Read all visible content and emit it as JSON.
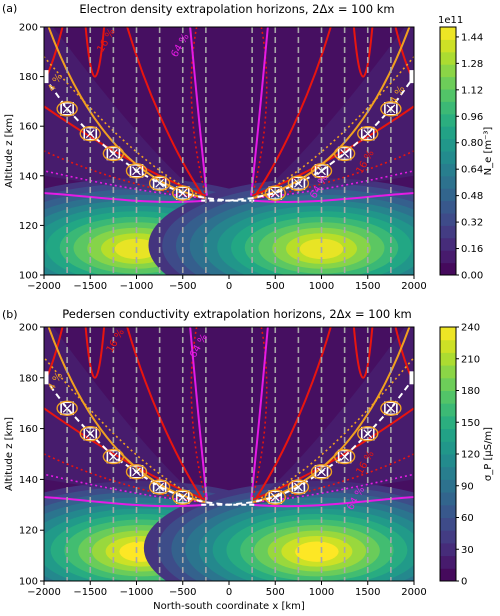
{
  "chart_data": [
    {
      "type": "heatmap",
      "panel_label": "(a)",
      "title": "Electron density extrapolation horizons, 2Δx = 100 km",
      "xlabel": "",
      "ylabel": "Altitude z [km]",
      "xlim": [
        -2000,
        2000
      ],
      "ylim": [
        100,
        200
      ],
      "x_ticks": [
        "−2000",
        "−1500",
        "−1000",
        "−500",
        "0",
        "500",
        "1000",
        "1500",
        "2000"
      ],
      "y_ticks": [
        "100",
        "120",
        "140",
        "160",
        "180",
        "200"
      ],
      "colorbar": {
        "label": "N_e [m⁻³]",
        "multiplier": "1e11",
        "range": [
          0,
          1.5
        ],
        "ticks": [
          "0.00",
          "0.16",
          "0.32",
          "0.48",
          "0.64",
          "0.80",
          "0.96",
          "1.12",
          "1.28",
          "1.44"
        ]
      },
      "blobs": [
        {
          "x": -1000,
          "z": 112,
          "peak": 1.45
        },
        {
          "x": 1000,
          "z": 112,
          "peak": 1.45
        }
      ],
      "dashed_verticals_x": [
        -1750,
        -1500,
        -1250,
        -1000,
        -750,
        -500,
        -250,
        250,
        500,
        750,
        1000,
        1250,
        1500,
        1750
      ],
      "horizon_points": [
        {
          "x": -1750,
          "z": 167
        },
        {
          "x": -1500,
          "z": 157
        },
        {
          "x": -1250,
          "z": 149
        },
        {
          "x": -1000,
          "z": 142
        },
        {
          "x": -750,
          "z": 137
        },
        {
          "x": -500,
          "z": 133
        },
        {
          "x": 500,
          "z": 133
        },
        {
          "x": 750,
          "z": 137
        },
        {
          "x": 1000,
          "z": 142
        },
        {
          "x": 1250,
          "z": 149
        },
        {
          "x": 1500,
          "z": 157
        },
        {
          "x": 1750,
          "z": 167
        }
      ],
      "edge_points": [
        {
          "x": -2000,
          "z": 180
        },
        {
          "x": 2000,
          "z": 180
        }
      ],
      "contour_labels": [
        "4 %",
        "16 %",
        "64 %",
        "4 %",
        "16 %",
        "64 %"
      ]
    },
    {
      "type": "heatmap",
      "panel_label": "(b)",
      "title": "Pedersen conductivity extrapolation horizons, 2Δx = 100 km",
      "xlabel": "North-south coordinate x [km]",
      "ylabel": "Altitude z [km]",
      "xlim": [
        -2000,
        2000
      ],
      "ylim": [
        100,
        200
      ],
      "x_ticks": [
        "−2000",
        "−1500",
        "−1000",
        "−500",
        "0",
        "500",
        "1000",
        "1500",
        "2000"
      ],
      "y_ticks": [
        "100",
        "120",
        "140",
        "160",
        "180",
        "200"
      ],
      "colorbar": {
        "label": "σ_P [μS/m]",
        "multiplier": "",
        "range": [
          0,
          240
        ],
        "ticks": [
          "0",
          "30",
          "60",
          "90",
          "120",
          "150",
          "180",
          "210",
          "240"
        ]
      },
      "blobs": [
        {
          "x": -950,
          "z": 113,
          "peak": 240
        },
        {
          "x": 950,
          "z": 113,
          "peak": 240
        }
      ],
      "dashed_verticals_x": [
        -1750,
        -1500,
        -1250,
        -1000,
        -750,
        -500,
        -250,
        250,
        500,
        750,
        1000,
        1250,
        1500,
        1750
      ],
      "horizon_points": [
        {
          "x": -1750,
          "z": 168
        },
        {
          "x": -1500,
          "z": 158
        },
        {
          "x": -1250,
          "z": 149
        },
        {
          "x": -1000,
          "z": 143
        },
        {
          "x": -750,
          "z": 137
        },
        {
          "x": -500,
          "z": 133
        },
        {
          "x": 500,
          "z": 133
        },
        {
          "x": 750,
          "z": 137
        },
        {
          "x": 1000,
          "z": 143
        },
        {
          "x": 1250,
          "z": 149
        },
        {
          "x": 1500,
          "z": 158
        },
        {
          "x": 1750,
          "z": 168
        }
      ],
      "edge_points": [
        {
          "x": -2000,
          "z": 180
        },
        {
          "x": 2000,
          "z": 180
        }
      ],
      "contour_labels": [
        "4 %",
        "16 %",
        "64 %",
        "16 %",
        "64 %"
      ]
    }
  ]
}
